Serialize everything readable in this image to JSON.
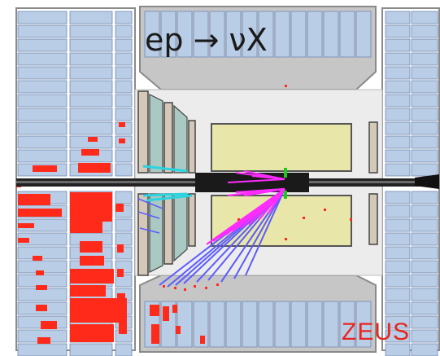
{
  "title": {
    "reaction": "ep → νX"
  },
  "logo": {
    "text": "ZEUS"
  },
  "colors": {
    "calorimeter_cell": "#b9cde6",
    "cell_border": "#6e87b0",
    "energy_deposit": "#ff2a1a",
    "detector_frame": "#c8c8c8",
    "chamber_fill": "#e8e6a8",
    "tracker_panel": "#a9c9c2",
    "coil": "#d4c8b8",
    "beam_pipe": "#111111",
    "track_magenta": "#ff2cff",
    "track_blue": "#5b5bff",
    "track_cyan": "#2ad4e0",
    "logo": "#e8251e"
  }
}
